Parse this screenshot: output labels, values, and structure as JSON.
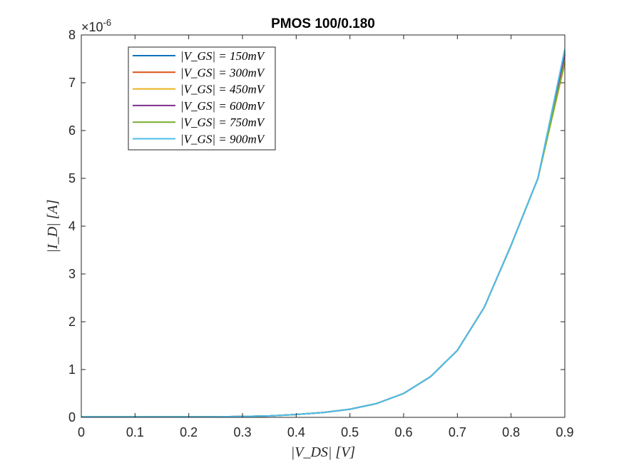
{
  "chart_data": {
    "type": "line",
    "title": "PMOS 100/0.180",
    "xlabel": "|V_DS| [V]",
    "ylabel": "|I_D| [A]",
    "y_exponent_label": "×10",
    "y_exponent": "-6",
    "xlim": [
      0,
      0.9
    ],
    "ylim": [
      0,
      8
    ],
    "y_scale_note": "values in units of 1e-6 A",
    "x_ticks": [
      "0",
      "0.1",
      "0.2",
      "0.3",
      "0.4",
      "0.5",
      "0.6",
      "0.7",
      "0.8",
      "0.9"
    ],
    "y_ticks": [
      "0",
      "1",
      "2",
      "3",
      "4",
      "5",
      "6",
      "7",
      "8"
    ],
    "grid": false,
    "legend_position": "top-left",
    "x": [
      0,
      0.05,
      0.1,
      0.15,
      0.2,
      0.25,
      0.3,
      0.35,
      0.4,
      0.45,
      0.5,
      0.55,
      0.6,
      0.65,
      0.7,
      0.75,
      0.8,
      0.85,
      0.9
    ],
    "series": [
      {
        "name": "|V_GS| = 150mV",
        "color": "#0072bd",
        "values": [
          0.01,
          0.01,
          0.01,
          0.01,
          0.01,
          0.01,
          0.02,
          0.03,
          0.06,
          0.1,
          0.17,
          0.29,
          0.5,
          0.85,
          1.4,
          2.3,
          3.6,
          5.0,
          7.65
        ]
      },
      {
        "name": "|V_GS| = 300mV",
        "color": "#d95319",
        "values": [
          0.01,
          0.01,
          0.01,
          0.01,
          0.01,
          0.01,
          0.02,
          0.03,
          0.06,
          0.1,
          0.17,
          0.29,
          0.5,
          0.85,
          1.4,
          2.3,
          3.6,
          5.0,
          7.6
        ]
      },
      {
        "name": "|V_GS| = 450mV",
        "color": "#edb120",
        "values": [
          0.01,
          0.01,
          0.01,
          0.01,
          0.01,
          0.01,
          0.02,
          0.03,
          0.06,
          0.1,
          0.17,
          0.29,
          0.5,
          0.85,
          1.4,
          2.3,
          3.6,
          5.0,
          7.4
        ]
      },
      {
        "name": "|V_GS| = 600mV",
        "color": "#7e2f8e",
        "values": [
          0.01,
          0.01,
          0.01,
          0.01,
          0.01,
          0.01,
          0.02,
          0.03,
          0.06,
          0.1,
          0.17,
          0.29,
          0.5,
          0.85,
          1.4,
          2.3,
          3.6,
          5.0,
          7.6
        ]
      },
      {
        "name": "|V_GS| = 750mV",
        "color": "#77ac30",
        "values": [
          0.01,
          0.01,
          0.01,
          0.01,
          0.01,
          0.01,
          0.02,
          0.03,
          0.06,
          0.1,
          0.17,
          0.29,
          0.5,
          0.85,
          1.4,
          2.3,
          3.6,
          5.0,
          7.45
        ]
      },
      {
        "name": "|V_GS| = 900mV",
        "color": "#4dbeee",
        "values": [
          0.01,
          0.01,
          0.01,
          0.01,
          0.01,
          0.01,
          0.02,
          0.03,
          0.06,
          0.1,
          0.17,
          0.29,
          0.5,
          0.85,
          1.4,
          2.3,
          3.6,
          5.0,
          7.7
        ]
      }
    ]
  }
}
